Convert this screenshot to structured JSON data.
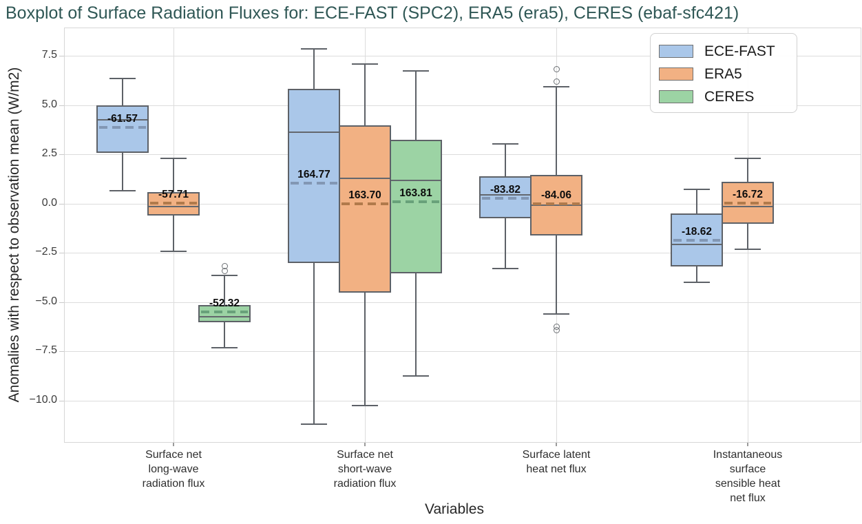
{
  "title": "Boxplot of Surface Radiation Fluxes for: ECE-FAST (SPC2), ERA5 (era5), CERES (ebaf-sfc421)",
  "axes": {
    "x_title": "Variables",
    "y_title": "Anomalies with respect to observation mean (W/m2)"
  },
  "legend": {
    "items": [
      {
        "label": "ECE-FAST",
        "color": "#aac7e9"
      },
      {
        "label": "ERA5",
        "color": "#f2b183"
      },
      {
        "label": "CERES",
        "color": "#9cd3a4"
      }
    ]
  },
  "colors": {
    "title_text": "#2f5755",
    "box_line": "#5d6167",
    "gridline": "#dcdcdc",
    "ece_fast_fill": "#aac7e9",
    "era5_fill": "#f2b183",
    "ceres_fill": "#9cd3a4",
    "ece_fast_mean_dash": "#8297b4",
    "era5_mean_dash": "#b17a4b",
    "ceres_mean_dash": "#68a17a"
  },
  "chart_data": {
    "type": "boxplot",
    "title": "Boxplot of Surface Radiation Fluxes for: ECE-FAST (SPC2), ERA5 (era5), CERES (ebaf-sfc421)",
    "xlabel": "Variables",
    "ylabel": "Anomalies with respect to observation mean (W/m2)",
    "ylim": [
      -12.1,
      8.95
    ],
    "yticks": [
      7.5,
      5.0,
      2.5,
      0.0,
      -2.5,
      -5.0,
      -7.5,
      -10.0
    ],
    "grid": true,
    "legend_position": "upper right",
    "categories": [
      "Surface net\nlong-wave\nradiation flux",
      "Surface net\nshort-wave\nradiation flux",
      "Surface latent\nheat net flux",
      "Instantaneous\nsurface\nsensible heat\nnet flux"
    ],
    "series": [
      {
        "name": "ECE-FAST",
        "fill": "#aac7e9",
        "dash": "#8297b4"
      },
      {
        "name": "ERA5",
        "fill": "#f2b183",
        "dash": "#b17a4b"
      },
      {
        "name": "CERES",
        "fill": "#9cd3a4",
        "dash": "#68a17a"
      }
    ],
    "boxes": [
      {
        "category": 0,
        "series": "ECE-FAST",
        "whislo": 0.65,
        "q1": 2.6,
        "med": 4.25,
        "mean": 3.87,
        "q3": 5.0,
        "whishi": 6.35,
        "outliers": [],
        "mean_label": "-61.57"
      },
      {
        "category": 0,
        "series": "ERA5",
        "whislo": -2.4,
        "q1": -0.6,
        "med": -0.15,
        "mean": 0.02,
        "q3": 0.6,
        "whishi": 2.3,
        "outliers": [],
        "mean_label": "-57.71"
      },
      {
        "category": 0,
        "series": "CERES",
        "whislo": -7.3,
        "q1": -6.0,
        "med": -5.75,
        "mean": -5.5,
        "q3": -5.15,
        "whishi": -3.65,
        "outliers": [
          -3.15,
          -3.42
        ],
        "mean_label": "-52.32"
      },
      {
        "category": 1,
        "series": "ECE-FAST",
        "whislo": -11.2,
        "q1": -3.0,
        "med": 3.65,
        "mean": 1.05,
        "q3": 5.85,
        "whishi": 7.85,
        "outliers": [],
        "mean_label": "164.77"
      },
      {
        "category": 1,
        "series": "ERA5",
        "whislo": -10.25,
        "q1": -4.5,
        "med": 1.3,
        "mean": 0.0,
        "q3": 4.0,
        "whishi": 7.1,
        "outliers": [],
        "mean_label": "163.70"
      },
      {
        "category": 1,
        "series": "CERES",
        "whislo": -8.75,
        "q1": -3.55,
        "med": 1.2,
        "mean": 0.1,
        "q3": 3.25,
        "whishi": 6.75,
        "outliers": [],
        "mean_label": "163.81"
      },
      {
        "category": 2,
        "series": "ECE-FAST",
        "whislo": -3.3,
        "q1": -0.75,
        "med": 0.45,
        "mean": 0.28,
        "q3": 1.4,
        "whishi": 3.05,
        "outliers": [],
        "mean_label": "-83.82"
      },
      {
        "category": 2,
        "series": "ERA5",
        "whislo": -5.6,
        "q1": -1.6,
        "med": -0.08,
        "mean": 0.0,
        "q3": 1.45,
        "whishi": 5.95,
        "outliers": [
          6.85,
          6.2,
          -6.25,
          -6.42
        ],
        "mean_label": "-84.06"
      },
      {
        "category": 3,
        "series": "ECE-FAST",
        "whislo": -4.0,
        "q1": -3.2,
        "med": -2.05,
        "mean": -1.87,
        "q3": -0.5,
        "whishi": 0.75,
        "outliers": [],
        "mean_label": "-18.62"
      },
      {
        "category": 3,
        "series": "ERA5",
        "whislo": -2.3,
        "q1": -1.0,
        "med": -0.15,
        "mean": 0.02,
        "q3": 1.1,
        "whishi": 2.3,
        "outliers": [],
        "mean_label": "-16.72"
      }
    ]
  }
}
